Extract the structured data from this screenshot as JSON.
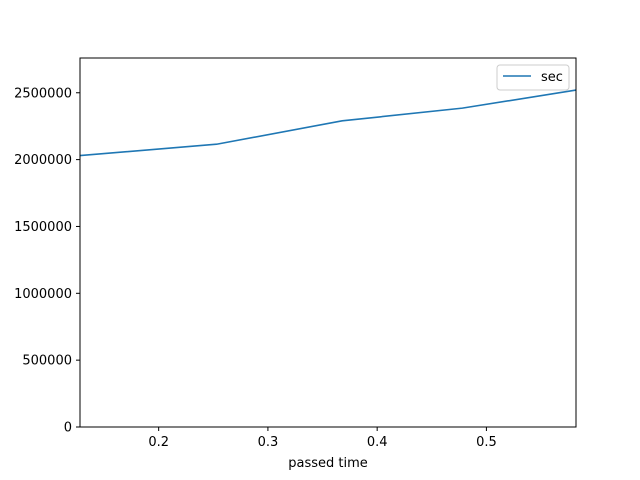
{
  "chart_data": {
    "type": "line",
    "xlabel": "passed time",
    "ylabel": "",
    "xlim": [
      0.128,
      0.582
    ],
    "ylim": [
      0,
      2760000
    ],
    "x_ticks": [
      0.2,
      0.3,
      0.4,
      0.5
    ],
    "x_tick_labels": [
      "0.2",
      "0.3",
      "0.4",
      "0.5"
    ],
    "y_ticks": [
      0,
      500000,
      1000000,
      1500000,
      2000000,
      2500000
    ],
    "y_tick_labels": [
      "0",
      "500000",
      "1000000",
      "1500000",
      "2000000",
      "2500000"
    ],
    "grid": false,
    "legend_position": "top-right",
    "series": [
      {
        "name": "sec",
        "color": "#1f77b4",
        "x": [
          0.128,
          0.253,
          0.368,
          0.478,
          0.582
        ],
        "y": [
          2030000,
          2115000,
          2290000,
          2385000,
          2520000
        ]
      }
    ]
  }
}
